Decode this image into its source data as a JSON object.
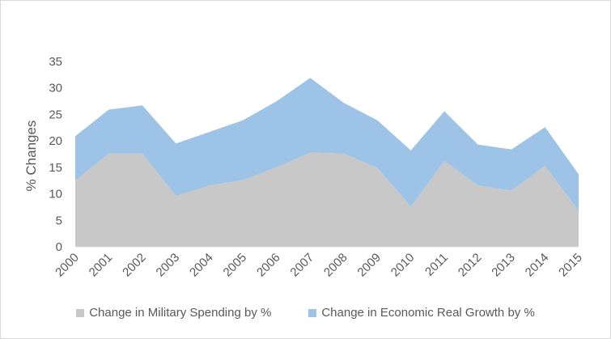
{
  "chart_data": {
    "type": "area",
    "stacked": true,
    "title": "",
    "xlabel": "",
    "ylabel": "% Changes",
    "ylim": [
      0,
      35
    ],
    "yticks": [
      "0",
      "5",
      "10",
      "15",
      "20",
      "25",
      "30",
      "35"
    ],
    "categories": [
      "2000",
      "2001",
      "2002",
      "2003",
      "2004",
      "2005",
      "2006",
      "2007",
      "2008",
      "2009",
      "2010",
      "2011",
      "2012",
      "2013",
      "2014",
      "2015"
    ],
    "series": [
      {
        "name": "Change in Military Spending by %",
        "color": "#c8c8c8",
        "values": [
          12.5,
          17.6,
          17.6,
          9.6,
          11.6,
          12.6,
          15.0,
          17.8,
          17.6,
          14.9,
          7.6,
          16.2,
          11.6,
          10.6,
          15.3,
          6.8
        ]
      },
      {
        "name": "Change in Economic Real Growth by %",
        "color": "#9dc3e6",
        "values": [
          8.4,
          8.3,
          9.1,
          9.9,
          10.1,
          11.3,
          12.5,
          14.1,
          9.6,
          9.0,
          10.6,
          9.4,
          7.7,
          7.8,
          7.3,
          6.9
        ]
      }
    ],
    "legend_position": "bottom",
    "grid": false
  }
}
